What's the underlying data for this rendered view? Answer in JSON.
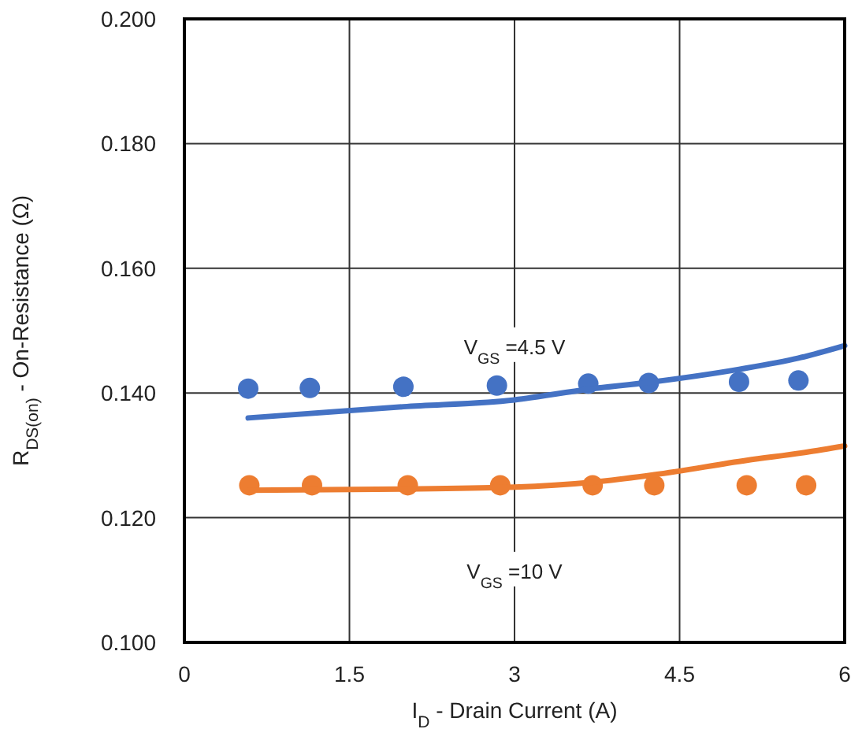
{
  "chart_data": {
    "type": "scatter",
    "xlabel": "I$_{D}$ - Drain Current (A)",
    "ylabel": "R$_{DS(on)}$ - On-Resistance (Ω)",
    "xlim": [
      0,
      6
    ],
    "xticks": [
      0,
      1.5,
      3,
      4.5,
      6
    ],
    "ylim": [
      0.1,
      0.2
    ],
    "yticks": [
      {
        "value": 0.1,
        "label": "0.100"
      },
      {
        "value": 0.12,
        "label": "0.120"
      },
      {
        "value": 0.14,
        "label": "0.140"
      },
      {
        "value": 0.16,
        "label": "0.160"
      },
      {
        "value": 0.18,
        "label": "0.180"
      },
      {
        "value": 0.2,
        "label": "0.200"
      }
    ],
    "grid": true,
    "marker": "circle",
    "series": [
      {
        "color": "#4472c4",
        "x": [
          0.58,
          1.14,
          1.99,
          2.84,
          3.67,
          4.22,
          5.04,
          5.58
        ],
        "values": [
          0.1407,
          0.1408,
          0.141,
          0.1412,
          0.1415,
          0.1416,
          0.1418,
          0.142
        ]
      },
      {
        "color": "#ed7d31",
        "x": [
          0.59,
          1.16,
          2.03,
          2.87,
          3.71,
          4.27,
          5.11,
          5.65
        ],
        "values": [
          0.1252,
          0.1252,
          0.1252,
          0.1252,
          0.1252,
          0.1252,
          0.1252,
          0.1252
        ]
      },
      {
        "type": "line",
        "color": "#4472c4",
        "marker": "none",
        "x": [
          0.58,
          1.99,
          3.0,
          3.67,
          4.22,
          5.04,
          5.58,
          6
        ],
        "values": [
          0.136,
          0.1378,
          0.1389,
          0.1406,
          0.1417,
          0.1438,
          0.1456,
          0.1476
        ]
      },
      {
        "type": "line",
        "color": "#ed7d31",
        "marker": "none",
        "x": [
          0.59,
          2.03,
          3.0,
          3.71,
          4.27,
          5.11,
          5.65,
          6
        ],
        "values": [
          0.1244,
          0.1246,
          0.1249,
          0.1257,
          0.1269,
          0.1292,
          0.1305,
          0.1315
        ]
      }
    ],
    "annotations": [
      "V$_{GS}$ =4.5 V",
      "V$_{GS}$ =10 V"
    ]
  }
}
